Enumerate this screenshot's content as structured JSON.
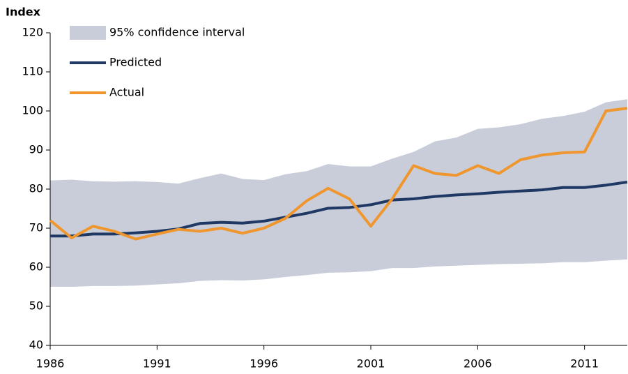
{
  "chart_data": {
    "type": "line",
    "ylabel": "Index",
    "x": [
      1986,
      1987,
      1988,
      1989,
      1990,
      1991,
      1992,
      1993,
      1994,
      1995,
      1996,
      1997,
      1998,
      1999,
      2000,
      2001,
      2002,
      2003,
      2004,
      2005,
      2006,
      2007,
      2008,
      2009,
      2010,
      2011,
      2012,
      2013
    ],
    "xlim": [
      1986,
      2013
    ],
    "xticks": [
      1986,
      1991,
      1996,
      2001,
      2006,
      2011
    ],
    "ylim": [
      40,
      120
    ],
    "yticks": [
      40,
      50,
      60,
      70,
      80,
      90,
      100,
      110,
      120
    ],
    "band": {
      "name": "95% confidence interval",
      "color": "#c9cdd9",
      "upper": [
        82.2,
        82.4,
        82,
        81.9,
        82,
        81.8,
        81.4,
        82.8,
        84,
        82.6,
        82.3,
        83.8,
        84.6,
        86.4,
        85.8,
        85.8,
        87.8,
        89.5,
        92.2,
        93.2,
        95.4,
        95.8,
        96.6,
        98,
        98.7,
        99.8,
        102.2,
        103
      ],
      "lower": [
        55,
        55,
        55.2,
        55.2,
        55.3,
        55.6,
        55.9,
        56.5,
        56.7,
        56.6,
        56.9,
        57.5,
        58,
        58.6,
        58.7,
        59,
        59.8,
        59.8,
        60.2,
        60.4,
        60.6,
        60.8,
        60.9,
        61,
        61.3,
        61.3,
        61.7,
        62
      ]
    },
    "series": [
      {
        "name": "Predicted",
        "color": "#1f3864",
        "values": [
          68,
          68,
          68.5,
          68.5,
          68.8,
          69.2,
          69.8,
          71.2,
          71.5,
          71.3,
          71.8,
          72.8,
          73.8,
          75.1,
          75.3,
          76,
          77.2,
          77.5,
          78.1,
          78.5,
          78.8,
          79.2,
          79.5,
          79.8,
          80.4,
          80.4,
          81,
          81.8
        ]
      },
      {
        "name": "Actual",
        "color": "#f0962e",
        "values": [
          72,
          67.5,
          70.5,
          69.2,
          67.2,
          68.5,
          69.7,
          69.2,
          70,
          68.7,
          70,
          72.5,
          77,
          80.2,
          77.5,
          70.5,
          77.5,
          86,
          84,
          83.5,
          86,
          84,
          87.5,
          88.7,
          89.3,
          89.5,
          100,
          100.7
        ]
      }
    ]
  }
}
